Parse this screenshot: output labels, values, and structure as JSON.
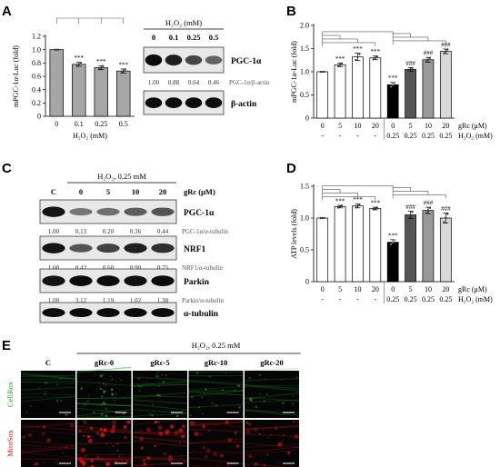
{
  "panels": {
    "A": {
      "label": "A",
      "chart_data": {
        "type": "bar",
        "categories": [
          "0",
          "0.1",
          "0.25",
          "0.5"
        ],
        "values": [
          1.0,
          0.78,
          0.73,
          0.68
        ],
        "errors": [
          0.0,
          0.03,
          0.03,
          0.03
        ],
        "significance": [
          "",
          "***",
          "***",
          "***"
        ],
        "ylabel": "mPGC-1α-Luc (fold)",
        "xlabel": "H₂O₂ (mM)",
        "ylim": [
          0,
          1.2
        ],
        "yticks": [
          "0",
          "0.2",
          "0.4",
          "0.6",
          "0.8",
          "1.0",
          "1.2"
        ],
        "bar_color": "#a6a6a6"
      },
      "blot": {
        "title": "H₂O₂ (mM)",
        "lanes": [
          "0",
          "0.1",
          "0.25",
          "0.5"
        ],
        "rows": [
          {
            "protein": "PGC-1α",
            "quant": [
              "1.00",
              "0.88",
              "0.64",
              "0.46"
            ],
            "ratio_label": "PGC-1α/β-actin"
          },
          {
            "protein": "β-actin",
            "quant": [],
            "ratio_label": ""
          }
        ]
      }
    },
    "B": {
      "label": "B",
      "chart_data": {
        "type": "bar",
        "categories": [
          "0",
          "5",
          "10",
          "20",
          "0",
          "5",
          "10",
          "20"
        ],
        "h2o2_row": [
          "-",
          "-",
          "-",
          "-",
          "0.25",
          "0.25",
          "0.25",
          "0.25"
        ],
        "values": [
          1.0,
          1.15,
          1.32,
          1.3,
          0.72,
          1.05,
          1.26,
          1.44
        ],
        "errors": [
          0.0,
          0.04,
          0.08,
          0.04,
          0.05,
          0.04,
          0.05,
          0.05
        ],
        "significance": [
          "",
          "***",
          "***",
          "***",
          "***",
          "###",
          "###",
          "###"
        ],
        "bar_colors": [
          "#ffffff",
          "#ffffff",
          "#ffffff",
          "#ffffff",
          "#000000",
          "#555555",
          "#999999",
          "#d9d9d9"
        ],
        "ylabel": "mPGC-1α-Luc (fold)",
        "row_labels": [
          "gRc (μM)",
          "H₂O₂ (mM)"
        ],
        "ylim": [
          0,
          2.0
        ],
        "yticks": [
          "0",
          "0.5",
          "1.0",
          "1.5",
          "2.0"
        ]
      }
    },
    "C": {
      "label": "C",
      "header": "H₂O₂, 0.25 mM",
      "lanes": [
        "C",
        "0",
        "5",
        "10",
        "20"
      ],
      "lane_row_label": "gRc (μM)",
      "rows": [
        {
          "protein": "PGC-1α",
          "quant": [
            "1.00",
            "0.13",
            "0.20",
            "0.36",
            "0.44"
          ],
          "ratio_label": "PGC-1α/α-tubulin"
        },
        {
          "protein": "NRF1",
          "quant": [
            "1.00",
            "0.42",
            "0.60",
            "0.90",
            "0.75"
          ],
          "ratio_label": "NRF1/α-tubulin"
        },
        {
          "protein": "Parkin",
          "quant": [
            "1.00",
            "3.12",
            "1.19",
            "1.02",
            "1.38"
          ],
          "ratio_label": "Parkin/α-tubulin"
        },
        {
          "protein": "α-tubulin",
          "quant": [],
          "ratio_label": ""
        }
      ]
    },
    "D": {
      "label": "D",
      "chart_data": {
        "type": "bar",
        "categories": [
          "0",
          "5",
          "10",
          "20",
          "0",
          "5",
          "10",
          "20"
        ],
        "h2o2_row": [
          "-",
          "-",
          "-",
          "-",
          "0.25",
          "0.25",
          "0.25",
          "0.25"
        ],
        "values": [
          1.0,
          1.18,
          1.19,
          1.15,
          0.62,
          1.05,
          1.12,
          1.0
        ],
        "errors": [
          0.0,
          0.02,
          0.03,
          0.02,
          0.04,
          0.06,
          0.05,
          0.08
        ],
        "significance": [
          "",
          "***",
          "***",
          "***",
          "***",
          "###",
          "###",
          "###"
        ],
        "bar_colors": [
          "#ffffff",
          "#ffffff",
          "#ffffff",
          "#ffffff",
          "#000000",
          "#555555",
          "#999999",
          "#d9d9d9"
        ],
        "ylabel": "ATP levels (fold)",
        "row_labels": [
          "gRc (μM)",
          "H₂O₂ (mM)"
        ],
        "ylim": [
          0,
          1.5
        ],
        "yticks": [
          "0",
          "0.5",
          "1.0",
          "1.5"
        ]
      }
    },
    "E": {
      "label": "E",
      "header": "H₂O₂, 0.25 mM",
      "columns": [
        "C",
        "gRc-0",
        "gRc-5",
        "gRc-10",
        "gRc-20"
      ],
      "rows": [
        {
          "label": "CellRox",
          "color": "#1faa1f",
          "intensity": [
            0.35,
            0.9,
            0.6,
            0.5,
            0.4
          ]
        },
        {
          "label": "MitoSox",
          "color": "#e01515",
          "intensity": [
            0.35,
            0.95,
            0.75,
            0.5,
            0.55
          ]
        }
      ]
    }
  }
}
